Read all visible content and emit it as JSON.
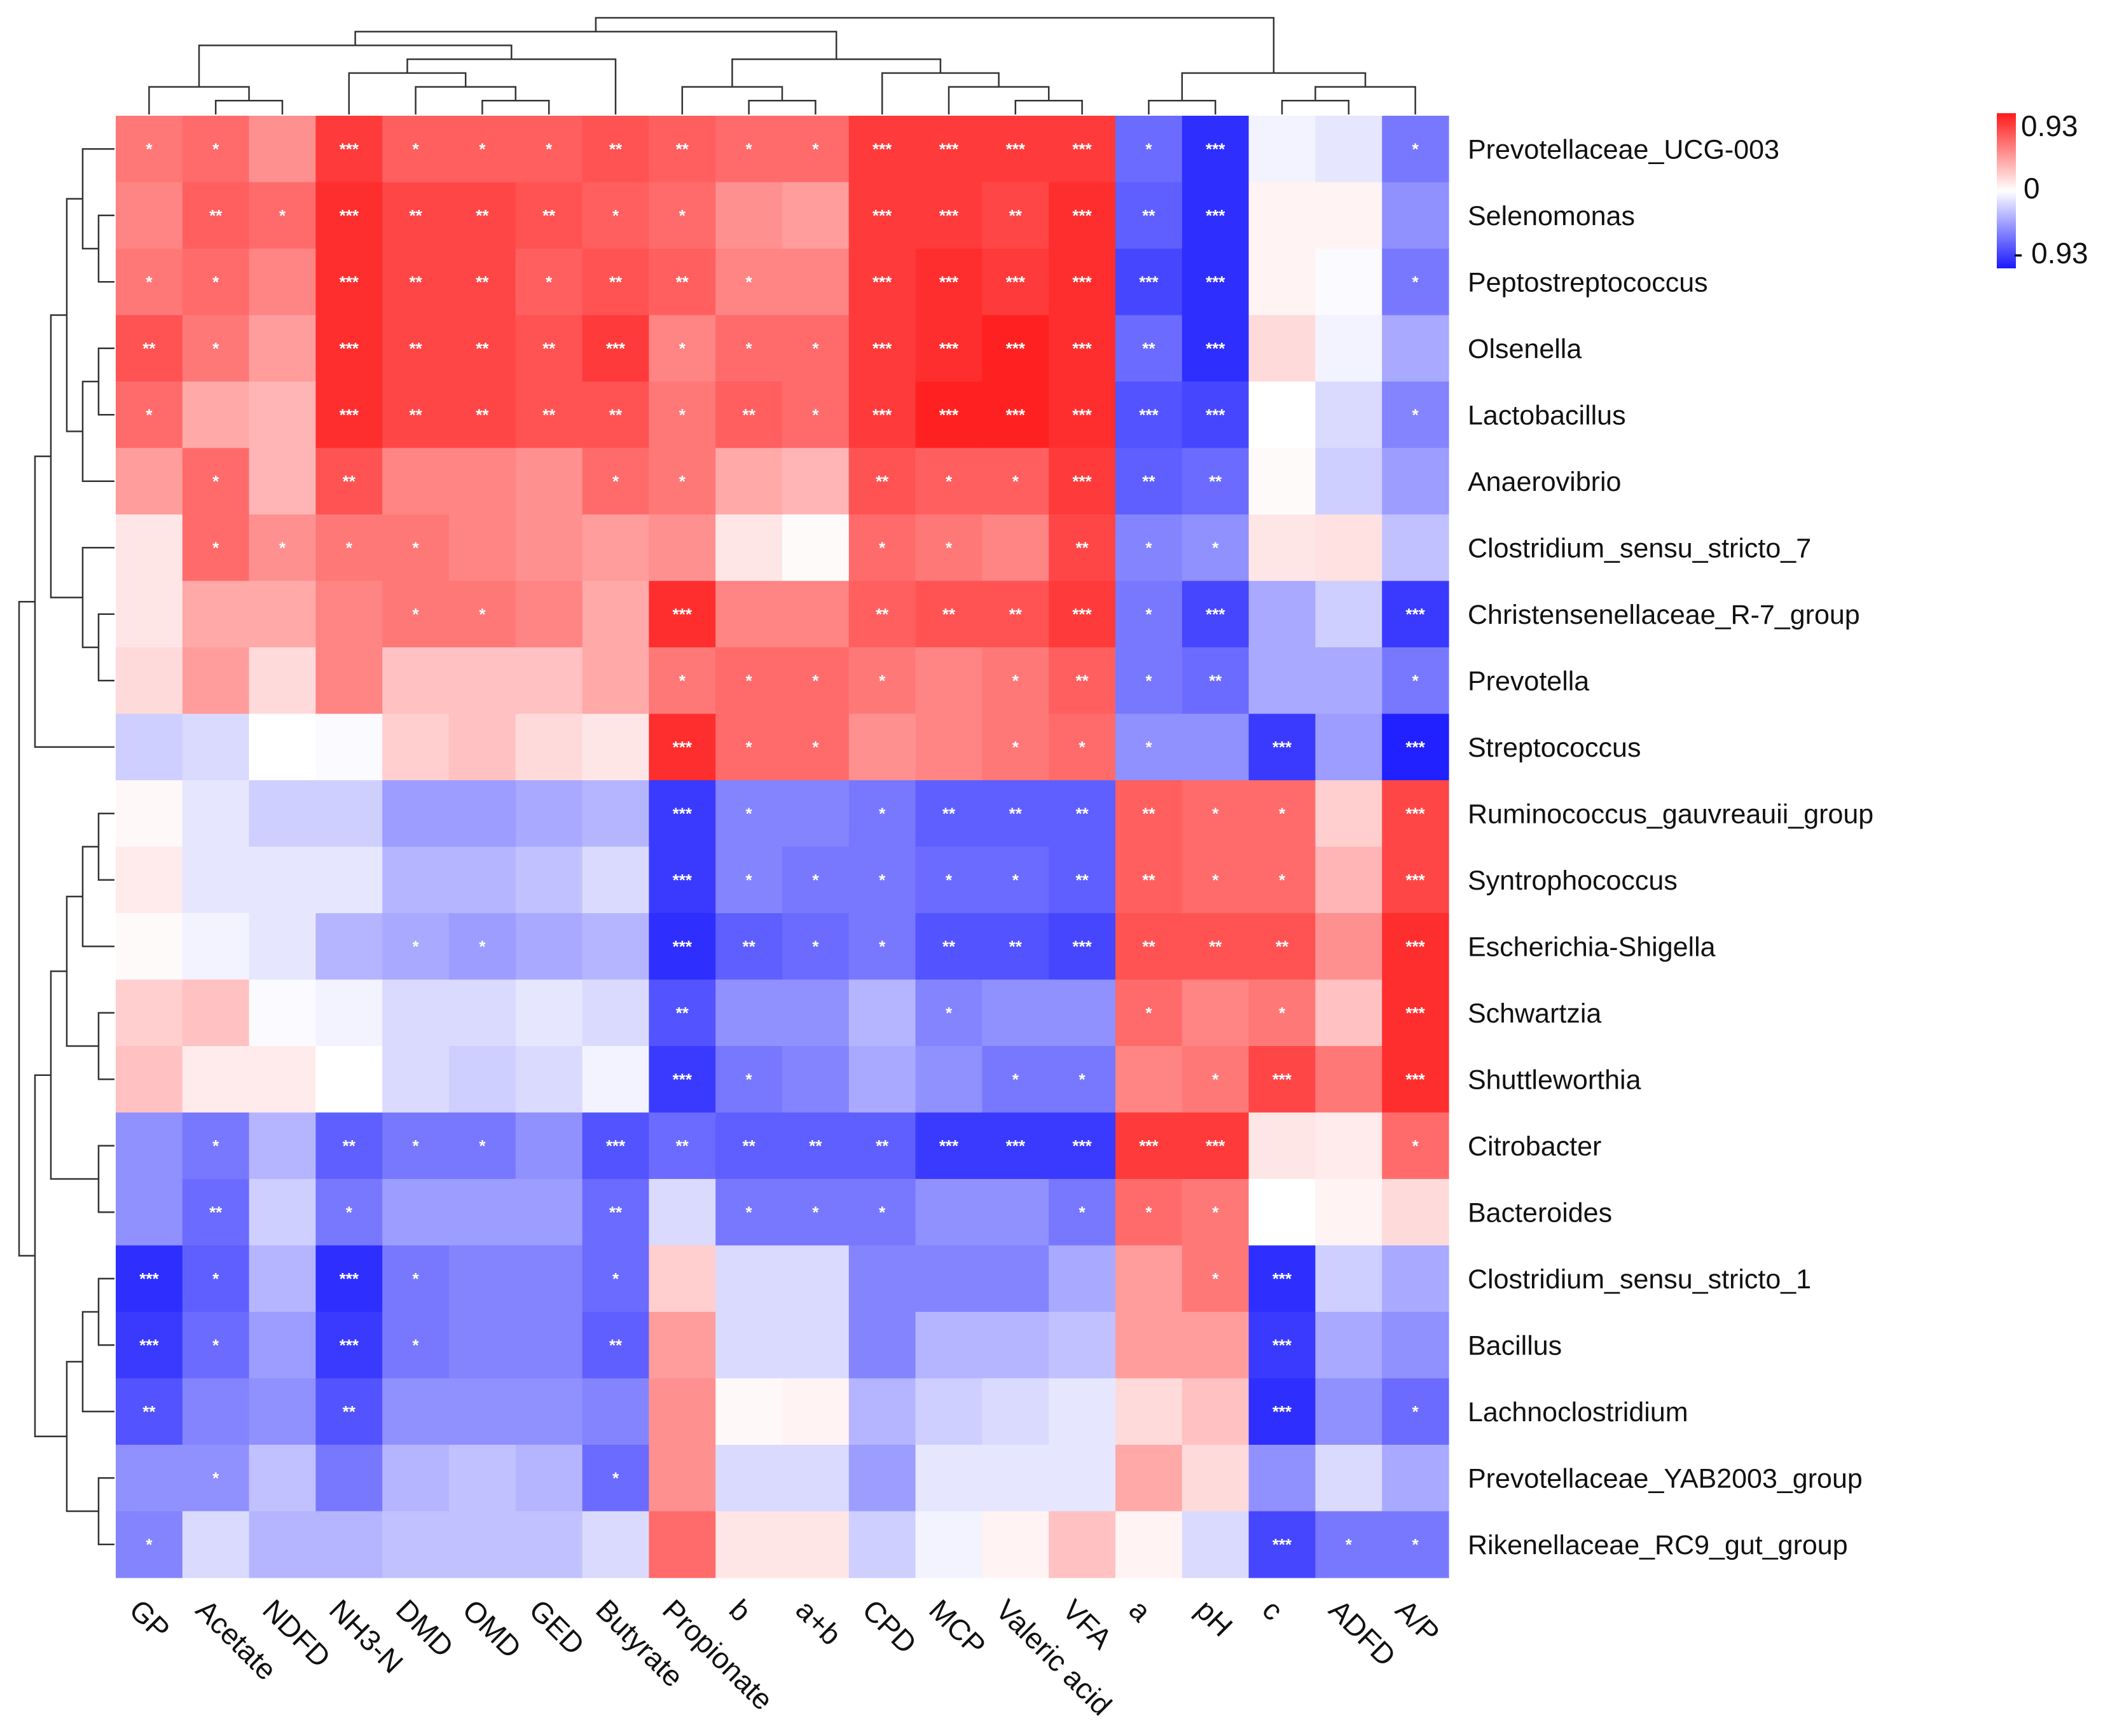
{
  "chart_data": {
    "type": "heatmap",
    "title": "",
    "rows": [
      "Prevotellaceae_UCG-003",
      "Selenomonas",
      "Peptostreptococcus",
      "Olsenella",
      "Lactobacillus",
      "Anaerovibrio",
      "Clostridium_sensu_stricto_7",
      "Christensenellaceae_R-7_group",
      "Prevotella",
      "Streptococcus",
      "Ruminococcus_gauvreauii_group",
      "Syntrophococcus",
      "Escherichia-Shigella",
      "Schwartzia",
      "Shuttleworthia",
      "Citrobacter",
      "Bacteroides",
      "Clostridium_sensu_stricto_1",
      "Bacillus",
      "Lachnoclostridium",
      "Prevotellaceae_YAB2003_group",
      "Rikenellaceae_RC9_gut_group"
    ],
    "columns": [
      "GP",
      "Acetate",
      "NDFD",
      "NH3-N",
      "DMD",
      "OMD",
      "GED",
      "Butyrate",
      "Propionate",
      "b",
      "a+b",
      "CPD",
      "MCP",
      "Valeric acid",
      "VFA",
      "a",
      "pH",
      "c",
      "ADFD",
      "A/P"
    ],
    "values": [
      [
        0.55,
        0.6,
        0.45,
        0.8,
        0.65,
        0.65,
        0.65,
        0.7,
        0.65,
        0.6,
        0.6,
        0.8,
        0.8,
        0.8,
        0.8,
        -0.6,
        -0.85,
        -0.05,
        -0.1,
        -0.55
      ],
      [
        0.5,
        0.65,
        0.6,
        0.85,
        0.75,
        0.75,
        0.7,
        0.65,
        0.6,
        0.45,
        0.4,
        0.8,
        0.8,
        0.75,
        0.85,
        -0.65,
        -0.85,
        0.05,
        0.05,
        -0.45
      ],
      [
        0.55,
        0.6,
        0.5,
        0.85,
        0.75,
        0.75,
        0.65,
        0.7,
        0.65,
        0.5,
        0.5,
        0.8,
        0.85,
        0.8,
        0.85,
        -0.75,
        -0.85,
        0.05,
        -0.02,
        -0.55
      ],
      [
        0.7,
        0.55,
        0.4,
        0.85,
        0.75,
        0.75,
        0.7,
        0.8,
        0.5,
        0.6,
        0.6,
        0.8,
        0.85,
        0.9,
        0.85,
        -0.6,
        -0.85,
        0.15,
        -0.05,
        -0.35
      ],
      [
        0.6,
        0.35,
        0.3,
        0.85,
        0.75,
        0.75,
        0.7,
        0.7,
        0.55,
        0.65,
        0.6,
        0.8,
        0.9,
        0.9,
        0.85,
        -0.7,
        -0.75,
        0.0,
        -0.15,
        -0.5
      ],
      [
        0.4,
        0.6,
        0.3,
        0.7,
        0.5,
        0.5,
        0.45,
        0.6,
        0.55,
        0.35,
        0.3,
        0.7,
        0.65,
        0.65,
        0.8,
        -0.65,
        -0.6,
        0.02,
        -0.2,
        -0.4
      ],
      [
        0.1,
        0.6,
        0.45,
        0.55,
        0.55,
        0.5,
        0.45,
        0.4,
        0.45,
        0.1,
        0.02,
        0.6,
        0.55,
        0.5,
        0.75,
        -0.5,
        -0.45,
        0.1,
        0.12,
        -0.25
      ],
      [
        0.1,
        0.35,
        0.35,
        0.5,
        0.55,
        0.55,
        0.5,
        0.35,
        0.85,
        0.5,
        0.5,
        0.65,
        0.7,
        0.7,
        0.8,
        -0.55,
        -0.75,
        -0.35,
        -0.2,
        -0.8
      ],
      [
        0.15,
        0.4,
        0.15,
        0.5,
        0.25,
        0.25,
        0.25,
        0.35,
        0.55,
        0.6,
        0.6,
        0.55,
        0.5,
        0.55,
        0.65,
        -0.55,
        -0.6,
        -0.35,
        -0.35,
        -0.55
      ],
      [
        -0.2,
        -0.15,
        0.0,
        -0.02,
        0.2,
        0.25,
        0.15,
        0.1,
        0.85,
        0.6,
        0.6,
        0.45,
        0.5,
        0.55,
        0.6,
        -0.45,
        -0.45,
        -0.8,
        -0.4,
        -0.9
      ],
      [
        0.03,
        -0.1,
        -0.2,
        -0.2,
        -0.4,
        -0.4,
        -0.35,
        -0.3,
        -0.8,
        -0.5,
        -0.5,
        -0.55,
        -0.65,
        -0.65,
        -0.65,
        0.65,
        0.6,
        0.6,
        0.2,
        0.75
      ],
      [
        0.08,
        -0.1,
        -0.1,
        -0.1,
        -0.3,
        -0.3,
        -0.25,
        -0.15,
        -0.8,
        -0.5,
        -0.55,
        -0.55,
        -0.6,
        -0.6,
        -0.65,
        0.65,
        0.6,
        0.6,
        0.3,
        0.75
      ],
      [
        0.02,
        -0.05,
        -0.1,
        -0.3,
        -0.35,
        -0.4,
        -0.35,
        -0.3,
        -0.85,
        -0.65,
        -0.6,
        -0.55,
        -0.7,
        -0.7,
        -0.75,
        0.7,
        0.7,
        0.7,
        0.45,
        0.85
      ],
      [
        0.2,
        0.25,
        -0.02,
        -0.05,
        -0.15,
        -0.15,
        -0.1,
        -0.15,
        -0.7,
        -0.45,
        -0.45,
        -0.3,
        -0.5,
        -0.45,
        -0.45,
        0.6,
        0.5,
        0.55,
        0.25,
        0.85
      ],
      [
        0.25,
        0.08,
        0.08,
        0.0,
        -0.15,
        -0.2,
        -0.15,
        -0.05,
        -0.8,
        -0.55,
        -0.5,
        -0.35,
        -0.45,
        -0.55,
        -0.55,
        0.5,
        0.55,
        0.75,
        0.55,
        0.85
      ],
      [
        -0.45,
        -0.55,
        -0.3,
        -0.65,
        -0.55,
        -0.55,
        -0.45,
        -0.7,
        -0.6,
        -0.65,
        -0.65,
        -0.65,
        -0.8,
        -0.8,
        -0.8,
        0.8,
        0.8,
        0.1,
        0.08,
        0.6
      ],
      [
        -0.45,
        -0.6,
        -0.2,
        -0.55,
        -0.4,
        -0.4,
        -0.4,
        -0.6,
        -0.15,
        -0.55,
        -0.55,
        -0.55,
        -0.45,
        -0.45,
        -0.55,
        0.6,
        0.55,
        0.0,
        0.05,
        0.15
      ],
      [
        -0.85,
        -0.65,
        -0.3,
        -0.85,
        -0.55,
        -0.5,
        -0.5,
        -0.6,
        0.2,
        -0.15,
        -0.15,
        -0.5,
        -0.5,
        -0.5,
        -0.35,
        0.4,
        0.55,
        -0.85,
        -0.2,
        -0.35
      ],
      [
        -0.8,
        -0.6,
        -0.4,
        -0.8,
        -0.55,
        -0.5,
        -0.5,
        -0.65,
        0.4,
        -0.15,
        -0.15,
        -0.5,
        -0.3,
        -0.3,
        -0.25,
        0.4,
        0.4,
        -0.8,
        -0.35,
        -0.45
      ],
      [
        -0.7,
        -0.5,
        -0.45,
        -0.7,
        -0.45,
        -0.45,
        -0.45,
        -0.5,
        0.45,
        0.03,
        0.05,
        -0.3,
        -0.2,
        -0.15,
        -0.1,
        0.15,
        0.25,
        -0.85,
        -0.45,
        -0.6
      ],
      [
        -0.45,
        -0.45,
        -0.25,
        -0.55,
        -0.3,
        -0.25,
        -0.3,
        -0.6,
        0.45,
        -0.15,
        -0.15,
        -0.4,
        -0.1,
        -0.1,
        -0.1,
        0.35,
        0.15,
        -0.45,
        -0.15,
        -0.35
      ],
      [
        -0.5,
        -0.15,
        -0.3,
        -0.3,
        -0.25,
        -0.25,
        -0.25,
        -0.15,
        0.6,
        0.1,
        0.1,
        -0.2,
        -0.05,
        0.05,
        0.25,
        0.05,
        -0.15,
        -0.75,
        -0.55,
        -0.55
      ]
    ],
    "significance": [
      [
        "*",
        "*",
        "",
        "***",
        "*",
        "*",
        "*",
        "**",
        "**",
        "*",
        "*",
        "***",
        "***",
        "***",
        "***",
        "*",
        "***",
        "",
        "",
        "*"
      ],
      [
        "",
        "**",
        "*",
        "***",
        "**",
        "**",
        "**",
        "*",
        "*",
        "",
        "",
        "***",
        "***",
        "**",
        "***",
        "**",
        "***",
        "",
        "",
        ""
      ],
      [
        "*",
        "*",
        "",
        "***",
        "**",
        "**",
        "*",
        "**",
        "**",
        "*",
        "",
        "***",
        "***",
        "***",
        "***",
        "***",
        "***",
        "",
        "",
        "*"
      ],
      [
        "**",
        "*",
        "",
        "***",
        "**",
        "**",
        "**",
        "***",
        "*",
        "*",
        "*",
        "***",
        "***",
        "***",
        "***",
        "**",
        "***",
        "",
        "",
        ""
      ],
      [
        "*",
        "",
        "",
        "***",
        "**",
        "**",
        "**",
        "**",
        "*",
        "**",
        "*",
        "***",
        "***",
        "***",
        "***",
        "***",
        "***",
        "",
        "",
        "*"
      ],
      [
        "",
        "*",
        "",
        "**",
        "",
        "",
        "",
        "*",
        "*",
        "",
        "",
        "**",
        "*",
        "*",
        "***",
        "**",
        "**",
        "",
        "",
        ""
      ],
      [
        "",
        "*",
        "*",
        "*",
        "*",
        "",
        "",
        "",
        "",
        "",
        "",
        "*",
        "*",
        "",
        "**",
        "*",
        "*",
        "",
        "",
        ""
      ],
      [
        "",
        "",
        "",
        "",
        "*",
        "*",
        "",
        "",
        "***",
        "",
        "",
        "**",
        "**",
        "**",
        "***",
        "*",
        "***",
        "",
        "",
        "***"
      ],
      [
        "",
        "",
        "",
        "",
        "",
        "",
        "",
        "",
        "*",
        "*",
        "*",
        "*",
        "",
        "*",
        "**",
        "*",
        "**",
        "",
        "",
        "*"
      ],
      [
        "",
        "",
        "",
        "",
        "",
        "",
        "",
        "",
        "***",
        "*",
        "*",
        "",
        "",
        "*",
        "*",
        "*",
        "",
        "***",
        "",
        "***"
      ],
      [
        "",
        "",
        "",
        "",
        "",
        "",
        "",
        "",
        "***",
        "*",
        "",
        "*",
        "**",
        "**",
        "**",
        "**",
        "*",
        "*",
        "",
        "***"
      ],
      [
        "",
        "",
        "",
        "",
        "",
        "",
        "",
        "",
        "***",
        "*",
        "*",
        "*",
        "*",
        "*",
        "**",
        "**",
        "*",
        "*",
        "",
        "***"
      ],
      [
        "",
        "",
        "",
        "",
        "*",
        "*",
        "",
        "",
        "***",
        "**",
        "*",
        "*",
        "**",
        "**",
        "***",
        "**",
        "**",
        "**",
        "",
        "***"
      ],
      [
        "",
        "",
        "",
        "",
        "",
        "",
        "",
        "",
        "**",
        "",
        "",
        "",
        "*",
        "",
        "",
        "*",
        "",
        "*",
        "",
        "***"
      ],
      [
        "",
        "",
        "",
        "",
        "",
        "",
        "",
        "",
        "***",
        "*",
        "",
        "",
        "",
        "*",
        "*",
        "",
        "*",
        "***",
        "",
        "***"
      ],
      [
        "",
        "*",
        "",
        "**",
        "*",
        "*",
        "",
        "***",
        "**",
        "**",
        "**",
        "**",
        "***",
        "***",
        "***",
        "***",
        "***",
        "",
        "",
        "*"
      ],
      [
        "",
        "**",
        "",
        "*",
        "",
        "",
        "",
        "**",
        "",
        "*",
        "*",
        "*",
        "",
        "",
        "*",
        "*",
        "*",
        "",
        "",
        ""
      ],
      [
        "***",
        "*",
        "",
        "***",
        "*",
        "",
        "",
        "*",
        "",
        "",
        "",
        "",
        "",
        "",
        "",
        "",
        "*",
        "***",
        "",
        ""
      ],
      [
        "***",
        "*",
        "",
        "***",
        "*",
        "",
        "",
        "**",
        "",
        "",
        "",
        "",
        "",
        "",
        "",
        "",
        "",
        "***",
        "",
        ""
      ],
      [
        "**",
        "",
        "",
        "**",
        "",
        "",
        "",
        "",
        "",
        "",
        "",
        "",
        "",
        "",
        "",
        "",
        "",
        "***",
        "",
        "*"
      ],
      [
        "",
        "*",
        "",
        "",
        "",
        "",
        "",
        "*",
        "",
        "",
        "",
        "",
        "",
        "",
        "",
        "",
        "",
        "",
        "",
        ""
      ],
      [
        "*",
        "",
        "",
        "",
        "",
        "",
        "",
        "",
        "",
        "",
        "",
        "",
        "",
        "",
        "",
        "",
        "",
        "***",
        "*",
        "*"
      ]
    ],
    "legend": {
      "max_label": "0.93",
      "mid_label": "0",
      "min_label": "- 0.93",
      "max": 0.93,
      "min": -0.93
    },
    "colors": {
      "positive": "#ff1a1a",
      "negative": "#1a1aff",
      "neutral": "#ffffff"
    },
    "xlabel": "",
    "ylabel": ""
  }
}
